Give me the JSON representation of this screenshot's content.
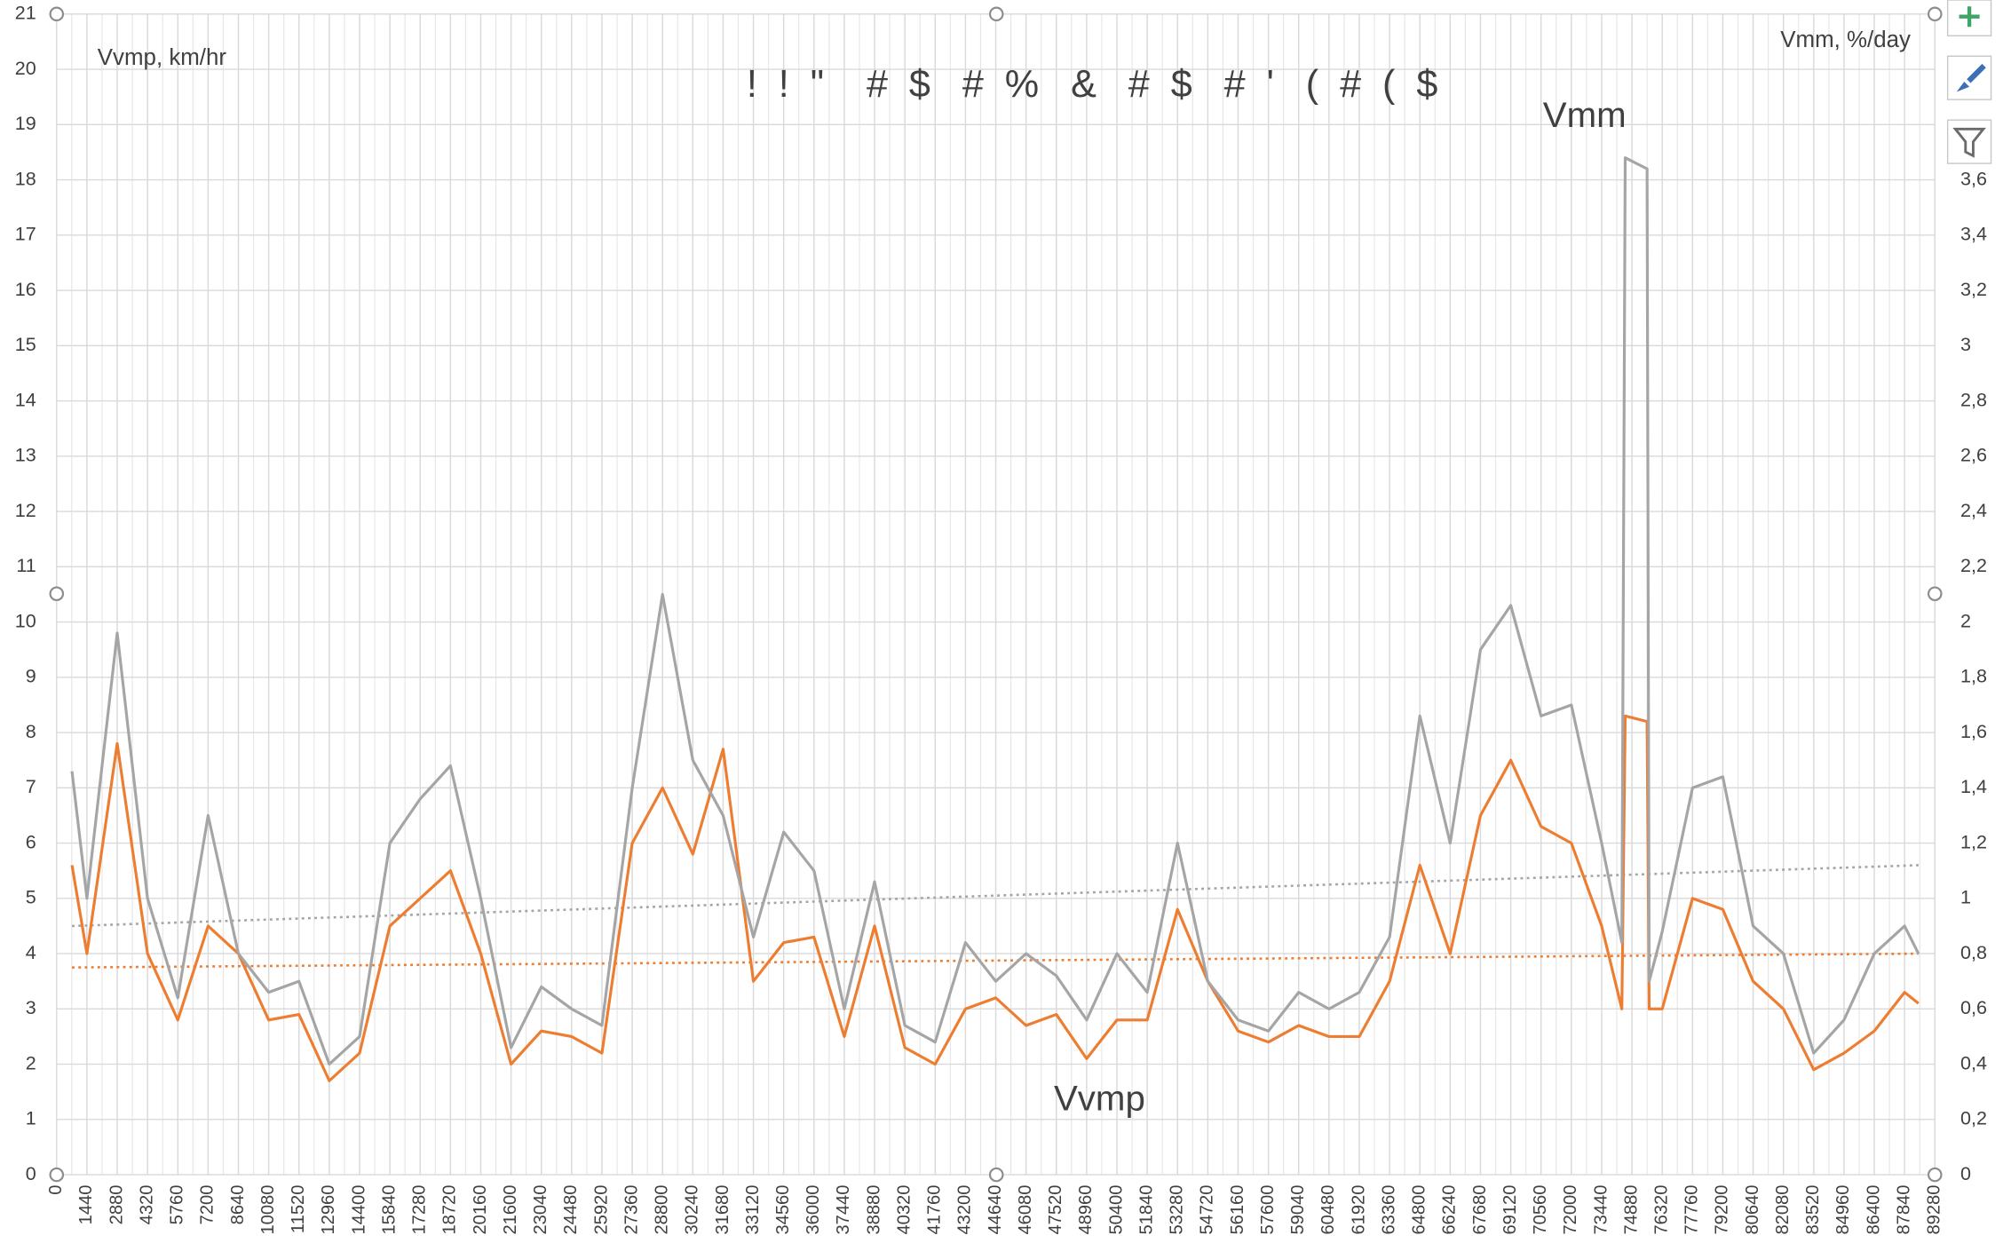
{
  "chart_data": {
    "type": "line",
    "title": "!  !  \"    #  $   #  %   &   #  $   #  '   (  #  (  $",
    "y_label": "Vvmp, km/hr",
    "y2_label": "Vmm, %/day",
    "annotations": [
      "Vmm",
      "Vvmp"
    ],
    "xlim": [
      0,
      89280
    ],
    "xticks": [
      0,
      1440,
      2880,
      4320,
      5760,
      7200,
      8640,
      10080,
      11520,
      12960,
      14400,
      15840,
      17280,
      18720,
      20160,
      21600,
      23040,
      24480,
      25920,
      27360,
      28800,
      30240,
      31680,
      33120,
      34560,
      36000,
      37440,
      38880,
      40320,
      41760,
      43200,
      44640,
      46080,
      47520,
      48960,
      50400,
      51840,
      53280,
      54720,
      56160,
      57600,
      59040,
      60480,
      61920,
      63360,
      64800,
      66240,
      67680,
      69120,
      70560,
      72000,
      73440,
      74880,
      76320,
      77760,
      79200,
      80640,
      82080,
      83520,
      84960,
      86400,
      87840,
      89280
    ],
    "ylim": [
      0,
      21
    ],
    "yticks": [
      0,
      1,
      2,
      3,
      4,
      5,
      6,
      7,
      8,
      9,
      10,
      11,
      12,
      13,
      14,
      15,
      16,
      17,
      18,
      19,
      20,
      21
    ],
    "y2lim": [
      0,
      4.2
    ],
    "y2ticks": [
      0,
      {
        "value": 0.2,
        "label": "0,2"
      },
      {
        "value": 0.4,
        "label": "0,4"
      },
      {
        "value": 0.6,
        "label": "0,6"
      },
      {
        "value": 0.8,
        "label": "0,8"
      },
      1,
      {
        "value": 1.2,
        "label": "1,2"
      },
      {
        "value": 1.4,
        "label": "1,4"
      },
      {
        "value": 1.6,
        "label": "1,6"
      },
      {
        "value": 1.8,
        "label": "1,8"
      },
      2,
      {
        "value": 2.2,
        "label": "2,2"
      },
      {
        "value": 2.4,
        "label": "2,4"
      },
      {
        "value": 2.6,
        "label": "2,6"
      },
      {
        "value": 2.8,
        "label": "2,8"
      },
      3,
      {
        "value": 3.2,
        "label": "3,2"
      },
      {
        "value": 3.4,
        "label": "3,4"
      },
      {
        "value": 3.6,
        "label": "3,6"
      }
    ],
    "grid": true,
    "x": [
      730,
      1440,
      2880,
      4320,
      5760,
      7200,
      8640,
      10080,
      11520,
      12960,
      14400,
      15840,
      17280,
      18720,
      20160,
      21600,
      23040,
      24480,
      25920,
      27360,
      28800,
      30240,
      31680,
      33120,
      34560,
      36000,
      37440,
      38880,
      40320,
      41760,
      43200,
      44640,
      46080,
      47520,
      48960,
      50400,
      51840,
      53280,
      54720,
      56160,
      57600,
      59040,
      60480,
      61920,
      63360,
      64800,
      66240,
      67680,
      69120,
      70560,
      72000,
      73440,
      74400,
      74560,
      75600,
      75700,
      76320,
      77760,
      79200,
      80640,
      82080,
      83520,
      84960,
      86400,
      87840,
      88500
    ],
    "series": [
      {
        "name": "Vvmp",
        "color": "#ed7d31",
        "values": [
          5.6,
          4,
          7.8,
          4,
          2.8,
          4.5,
          4,
          2.8,
          2.9,
          1.7,
          2.2,
          4.5,
          5,
          5.5,
          4,
          2,
          2.6,
          2.5,
          2.2,
          6,
          7,
          5.8,
          7.7,
          3.5,
          4.2,
          4.3,
          2.5,
          4.5,
          2.3,
          2,
          3,
          3.2,
          2.7,
          2.9,
          2.1,
          2.8,
          2.8,
          4.8,
          3.5,
          2.6,
          2.4,
          2.7,
          2.5,
          2.5,
          3.5,
          5.6,
          4,
          6.5,
          7.5,
          6.3,
          6,
          4.5,
          3,
          8.3,
          8.2,
          3,
          3,
          5,
          4.8,
          3.5,
          3,
          1.9,
          2.2,
          2.6,
          3.3,
          3.1
        ]
      },
      {
        "name": "Vmm",
        "color": "#a5a5a5",
        "axis": "y2",
        "values": [
          1.46,
          1.0,
          1.96,
          1.0,
          0.64,
          1.3,
          0.8,
          0.66,
          0.7,
          0.4,
          0.5,
          1.2,
          1.36,
          1.48,
          1.0,
          0.46,
          0.68,
          0.6,
          0.54,
          1.4,
          2.1,
          1.5,
          1.3,
          0.86,
          1.24,
          1.1,
          0.6,
          1.06,
          0.54,
          0.48,
          0.84,
          0.7,
          0.8,
          0.72,
          0.56,
          0.8,
          0.66,
          1.2,
          0.7,
          0.56,
          0.52,
          0.66,
          0.6,
          0.66,
          0.86,
          1.66,
          1.2,
          1.9,
          2.06,
          1.66,
          1.7,
          1.2,
          0.84,
          3.68,
          3.64,
          0.7,
          0.88,
          1.4,
          1.44,
          0.9,
          0.8,
          0.44,
          0.56,
          0.8,
          0.9,
          0.8
        ]
      }
    ],
    "trendlines": [
      {
        "color": "#a5a5a5",
        "axis": "y2",
        "x": [
          730,
          88500
        ],
        "values": [
          0.9,
          1.12
        ]
      },
      {
        "color": "#ed7d31",
        "x": [
          730,
          88500
        ],
        "values": [
          3.75,
          4.0
        ]
      }
    ]
  }
}
